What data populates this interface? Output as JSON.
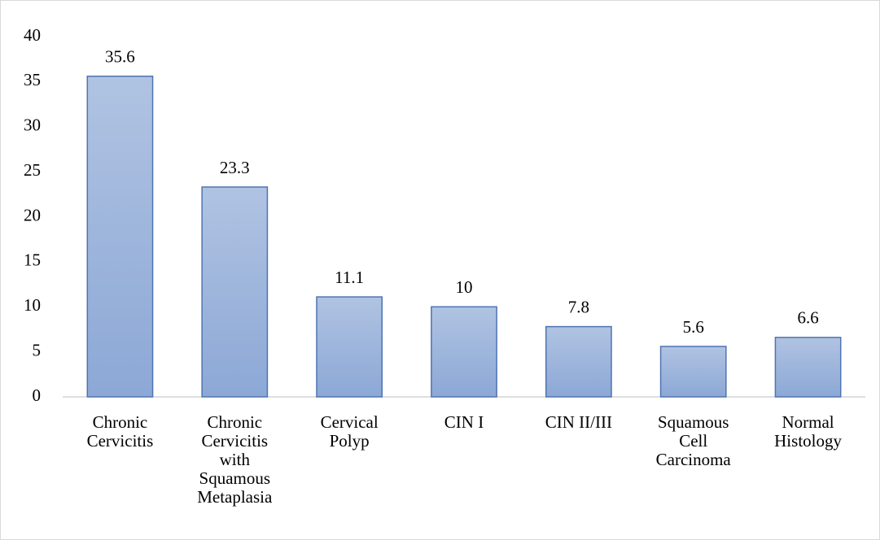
{
  "chart_data": {
    "type": "bar",
    "categories": [
      "Chronic Cervicitis",
      "Chronic Cervicitis with Squamous Metaplasia",
      "Cervical Polyp",
      "CIN I",
      "CIN II/III",
      "Squamous Cell Carcinoma",
      "Normal Histology"
    ],
    "values": [
      35.6,
      23.3,
      11.1,
      10,
      7.8,
      5.6,
      6.6
    ],
    "color": "#95afda",
    "ylim": [
      0,
      40
    ],
    "yticks": [
      0,
      5,
      10,
      15,
      20,
      25,
      30,
      35,
      40
    ],
    "grid": false
  }
}
